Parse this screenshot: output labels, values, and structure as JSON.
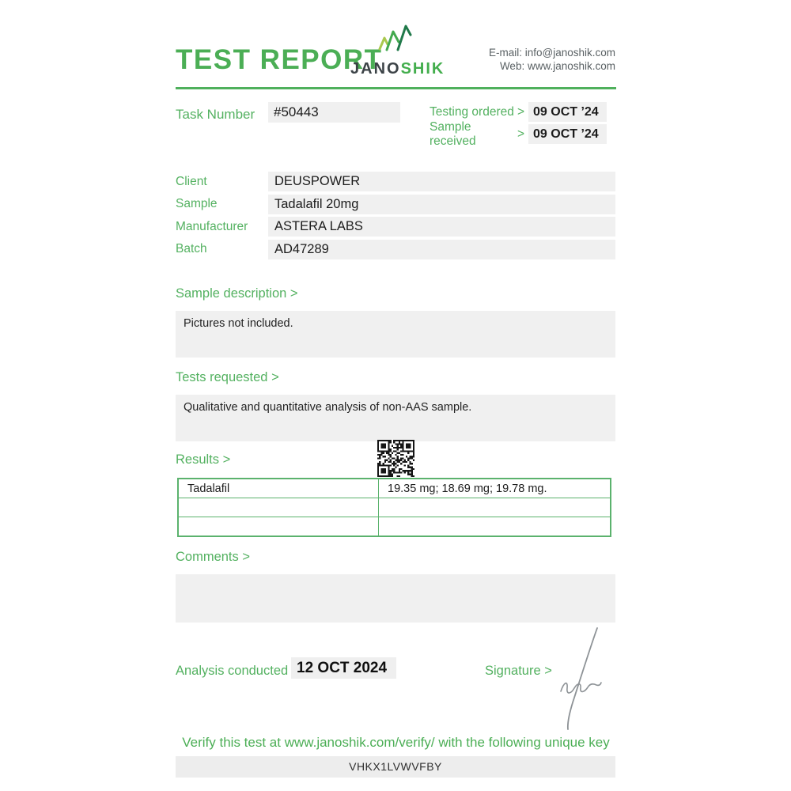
{
  "report": {
    "title": "TEST REPORT",
    "brand": {
      "primary": "JANO",
      "secondary": "SHIK"
    },
    "contact": {
      "email_line": "E-mail: info@janoshik.com",
      "web_line": "Web: www.janoshik.com"
    },
    "task": {
      "label": "Task Number",
      "value": "#50443"
    },
    "dates": [
      {
        "label": "Testing ordered",
        "separator": ">",
        "value": "09 OCT ’24"
      },
      {
        "label": "Sample received",
        "separator": ">",
        "value": "09 OCT ’24"
      }
    ],
    "info_rows": [
      {
        "label": "Client",
        "value": "DEUSPOWER"
      },
      {
        "label": "Sample",
        "value": "Tadalafil 20mg"
      },
      {
        "label": "Manufacturer",
        "value": "ASTERA LABS"
      },
      {
        "label": "Batch",
        "value": "AD47289"
      }
    ],
    "sample_description": {
      "label": "Sample description >",
      "content": "Pictures not included."
    },
    "tests_requested": {
      "label": "Tests requested >",
      "content": "Qualitative and quantitative analysis of non-AAS sample."
    },
    "results": {
      "label": "Results >",
      "table_rows": [
        {
          "analyte": "Tadalafil",
          "result": "19.35 mg; 18.69 mg; 19.78 mg."
        },
        {
          "analyte": "",
          "result": ""
        },
        {
          "analyte": "",
          "result": ""
        }
      ]
    },
    "comments": {
      "label": "Comments >",
      "content": ""
    },
    "analysis": {
      "label": "Analysis conducted >",
      "value": "12 OCT 2024"
    },
    "signature": {
      "label": "Signature >"
    },
    "footer": {
      "verify_text": "Verify this test at www.janoshik.com/verify/ with the following unique key",
      "unique_key": "VHKX1LVWVFBY"
    },
    "colors": {
      "accent_green": "#4bae55",
      "label_green": "#53b160",
      "table_border_green": "#5bb26d",
      "bar_background": "#f0f0f0",
      "dark_text": "#1c1c1c",
      "logo_light_green": "#a9c84d",
      "logo_mid_green": "#43a94e",
      "logo_dark_green": "#20794a",
      "signature_gray": "#8d9296"
    }
  }
}
